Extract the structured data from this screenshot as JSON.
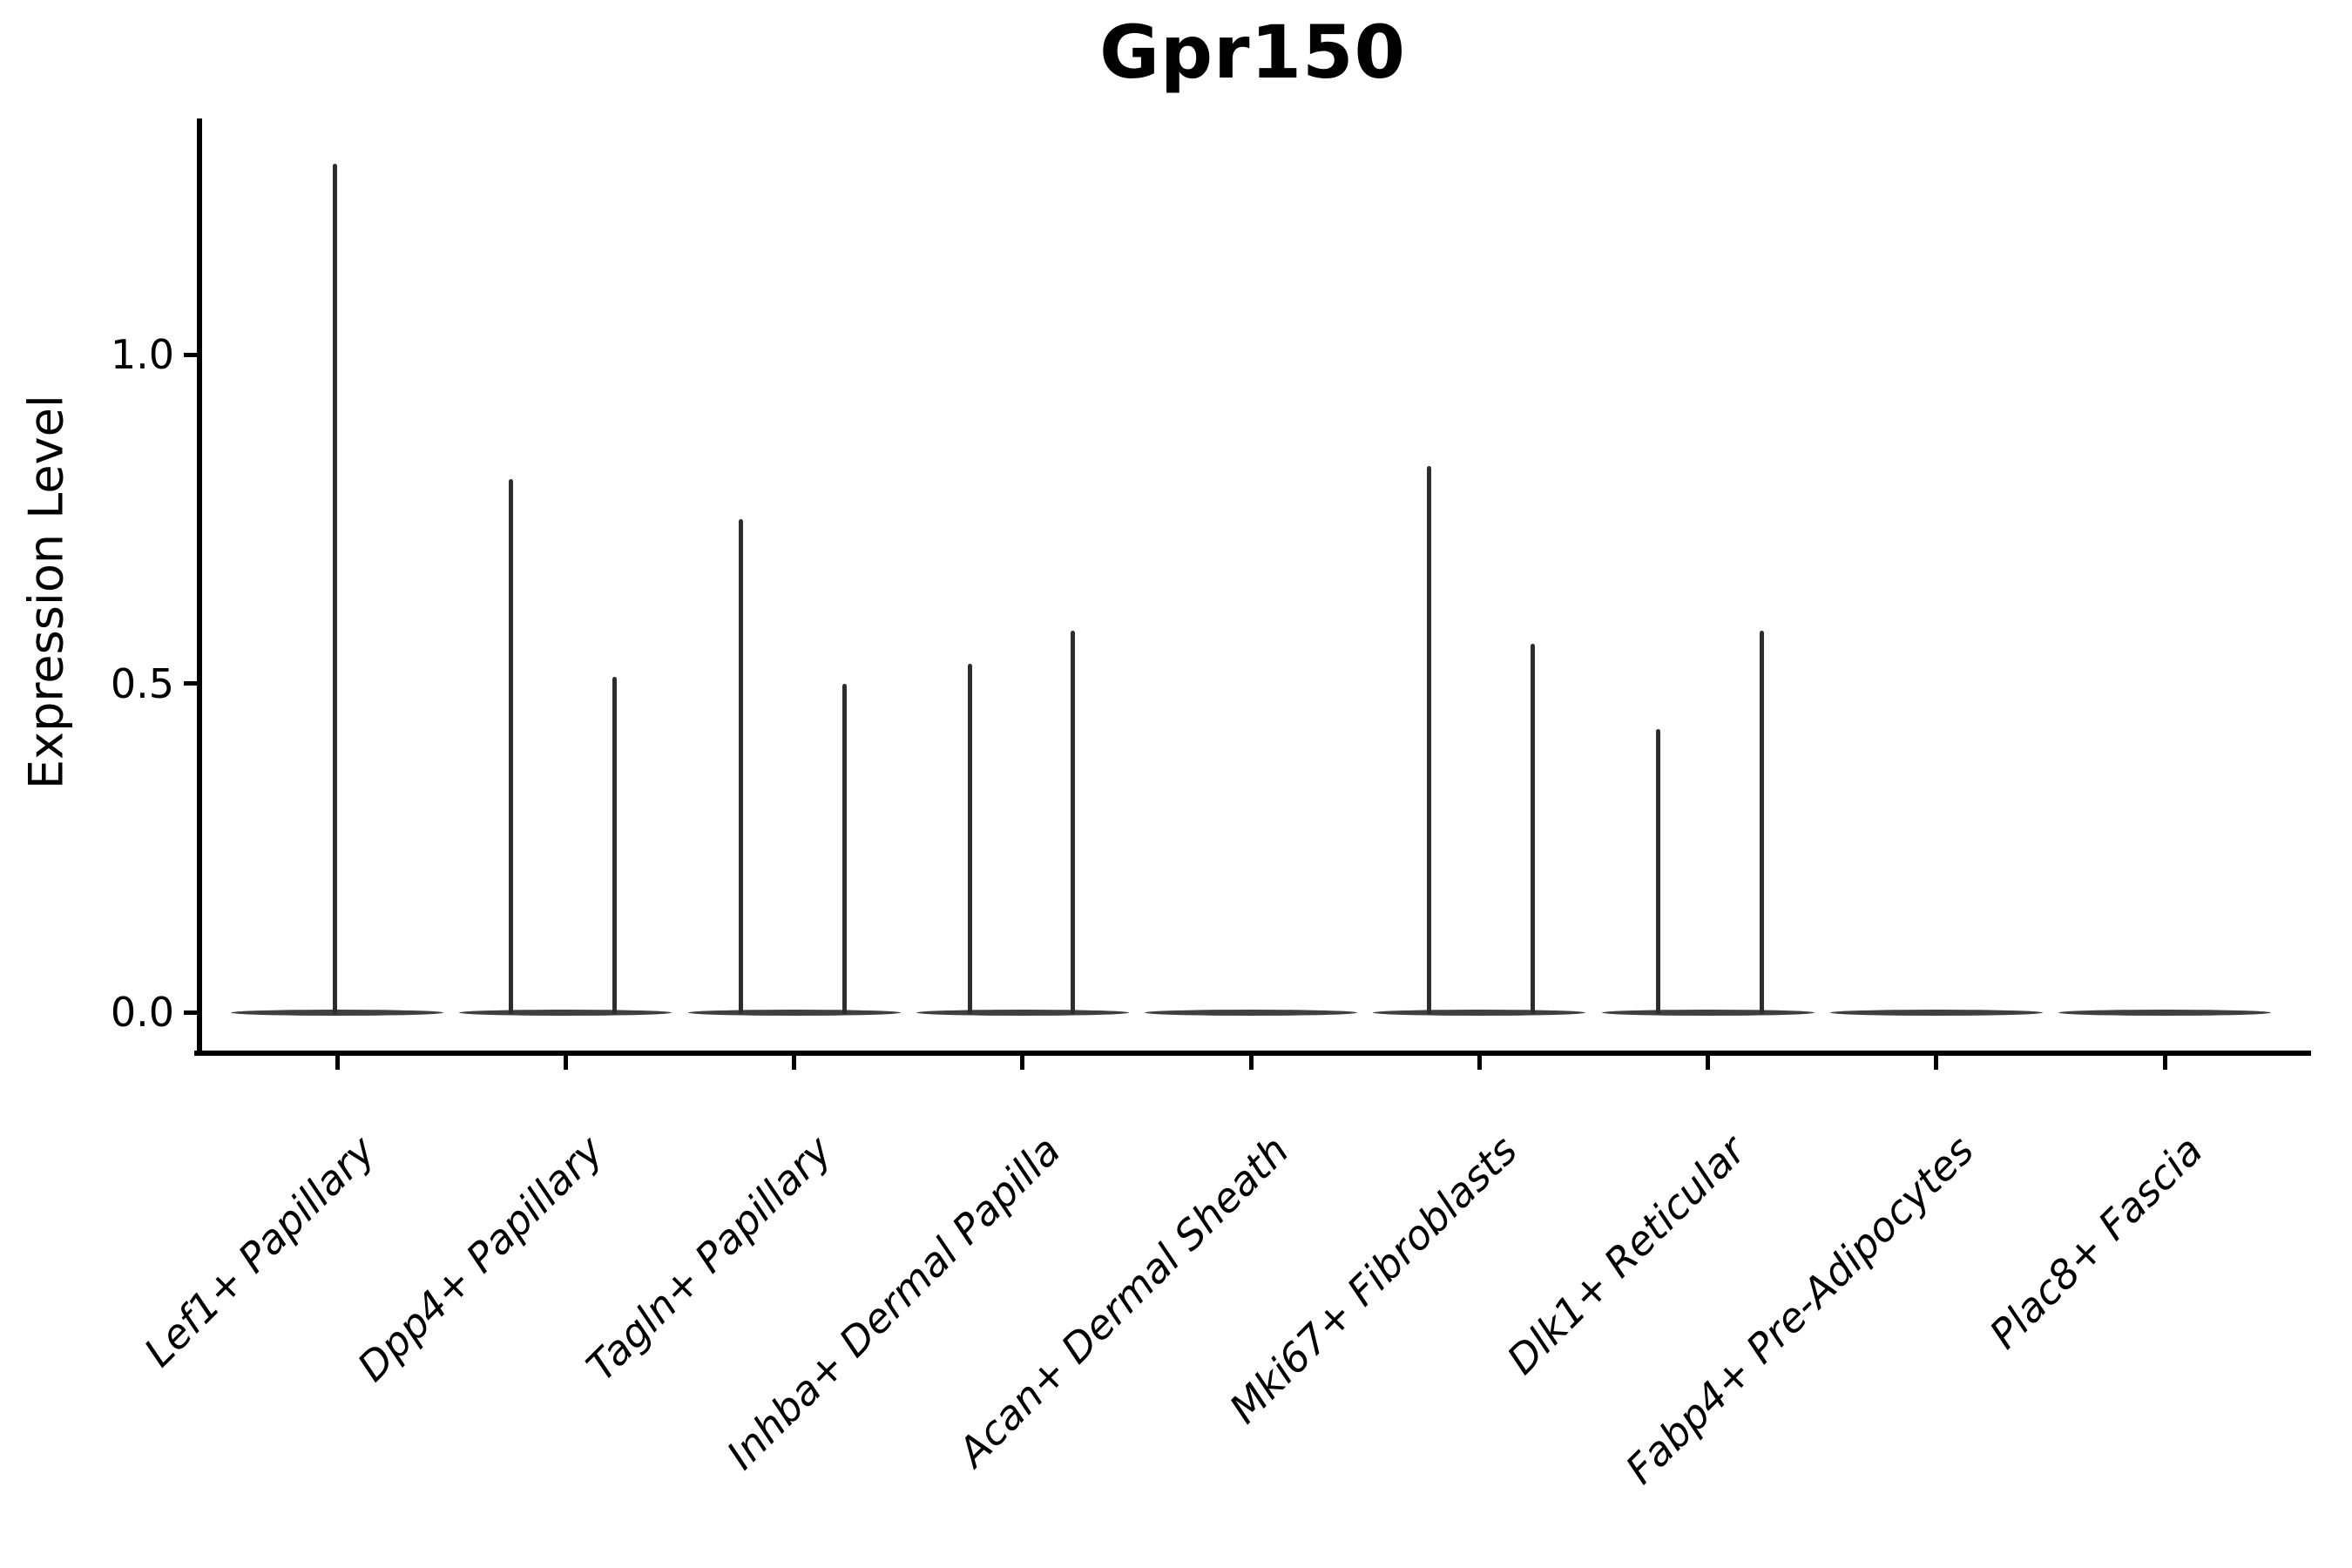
{
  "colors": {
    "background": "#ffffff",
    "axis": "#000000",
    "text": "#000000",
    "violin_fill": "#3f3f3f",
    "spike": "#2d2d2d"
  },
  "chart_data": {
    "type": "violin",
    "title": "Gpr150",
    "ylabel": "Expression Level",
    "xlabel": "",
    "grid": false,
    "legend": "none",
    "ylim": [
      0,
      1.36
    ],
    "yticks": [
      "0.0",
      "0.5",
      "1.0"
    ],
    "ytick_values": [
      0.0,
      0.5,
      1.0
    ],
    "categories": [
      "Lef1+ Papillary",
      "Dpp4+ Papillary",
      "Tagln+ Papillary",
      "Inhba+ Dermal Papilla",
      "Acan+ Dermal Sheath",
      "Mki67+ Fibroblasts",
      "Dlk1+ Reticular",
      "Fabp4+ Pre-Adipocytes",
      "Plac8+ Fascia"
    ],
    "violins": [
      {
        "category": "Lef1+ Papillary",
        "baseline_value": 0.0,
        "spikes": [
          {
            "dx": -3,
            "value": 1.29
          }
        ]
      },
      {
        "category": "Dpp4+ Papillary",
        "baseline_value": 0.0,
        "spikes": [
          {
            "dx": -63,
            "value": 0.81
          },
          {
            "dx": 56,
            "value": 0.51
          }
        ]
      },
      {
        "category": "Tagln+ Papillary",
        "baseline_value": 0.0,
        "spikes": [
          {
            "dx": -61,
            "value": 0.75
          },
          {
            "dx": 58,
            "value": 0.5
          }
        ]
      },
      {
        "category": "Inhba+ Dermal Papilla",
        "baseline_value": 0.0,
        "spikes": [
          {
            "dx": -60,
            "value": 0.53
          },
          {
            "dx": 58,
            "value": 0.58
          }
        ]
      },
      {
        "category": "Acan+ Dermal Sheath",
        "baseline_value": 0.0,
        "spikes": []
      },
      {
        "category": "Mki67+ Fibroblasts",
        "baseline_value": 0.0,
        "spikes": [
          {
            "dx": -58,
            "value": 0.83
          },
          {
            "dx": 61,
            "value": 0.56
          }
        ]
      },
      {
        "category": "Dlk1+ Reticular",
        "baseline_value": 0.0,
        "spikes": [
          {
            "dx": -57,
            "value": 0.43
          },
          {
            "dx": 62,
            "value": 0.58
          }
        ]
      },
      {
        "category": "Fabp4+ Pre-Adipocytes",
        "baseline_value": 0.0,
        "spikes": []
      },
      {
        "category": "Plac8+ Fascia",
        "baseline_value": 0.0,
        "spikes": []
      }
    ]
  }
}
